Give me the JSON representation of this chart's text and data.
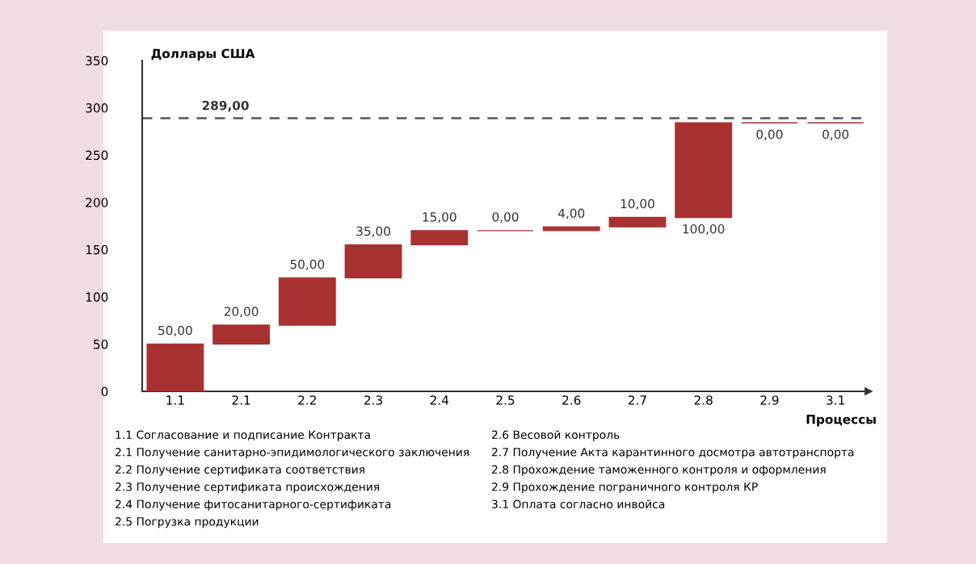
{
  "chart_data": {
    "type": "bar",
    "ylabel": "Доллары США",
    "xlabel": "Процессы",
    "categories": [
      "1.1",
      "2.1",
      "2.2",
      "2.3",
      "2.4",
      "2.5",
      "2.6",
      "2.7",
      "2.8",
      "2.9",
      "3.1"
    ],
    "values": [
      50,
      20,
      50,
      35,
      15,
      0,
      4,
      10,
      100,
      0,
      0
    ],
    "base": [
      0,
      50,
      70,
      120,
      155,
      170,
      170,
      174,
      184,
      284,
      284
    ],
    "value_labels": [
      "50,00",
      "20,00",
      "50,00",
      "35,00",
      "15,00",
      "0,00",
      "4,00",
      "10,00",
      "100,00",
      "0,00",
      "0,00"
    ],
    "color": "#a83232",
    "ylim": [
      0,
      350
    ],
    "yticks": [
      0,
      50,
      100,
      150,
      200,
      250,
      300,
      350
    ],
    "grid": false,
    "ref_lines": [
      {
        "axis": "y",
        "value": 289,
        "label": "289,00",
        "color": "#555555",
        "line_style": "dashed"
      }
    ],
    "annotations": [
      "1.1 Согласование и подписание Контракта",
      "2.1 Получение санитарно-эпидимологического заключения",
      "2.2 Получение сертификата соответствия",
      "2.3 Получение сертификата происхождения",
      "2.4 Получение фитосанитарного-сертификата",
      "2.5 Погрузка продукции",
      "2.6 Весовой контроль",
      "2.7 Получение Акта карантинного досмотра автотранспорта",
      "2.8 Прохождение таможенного контроля и оформления",
      "2.9 Прохождение пограничного контроля КР",
      "3.1 Оплата согласно инвойса"
    ]
  }
}
